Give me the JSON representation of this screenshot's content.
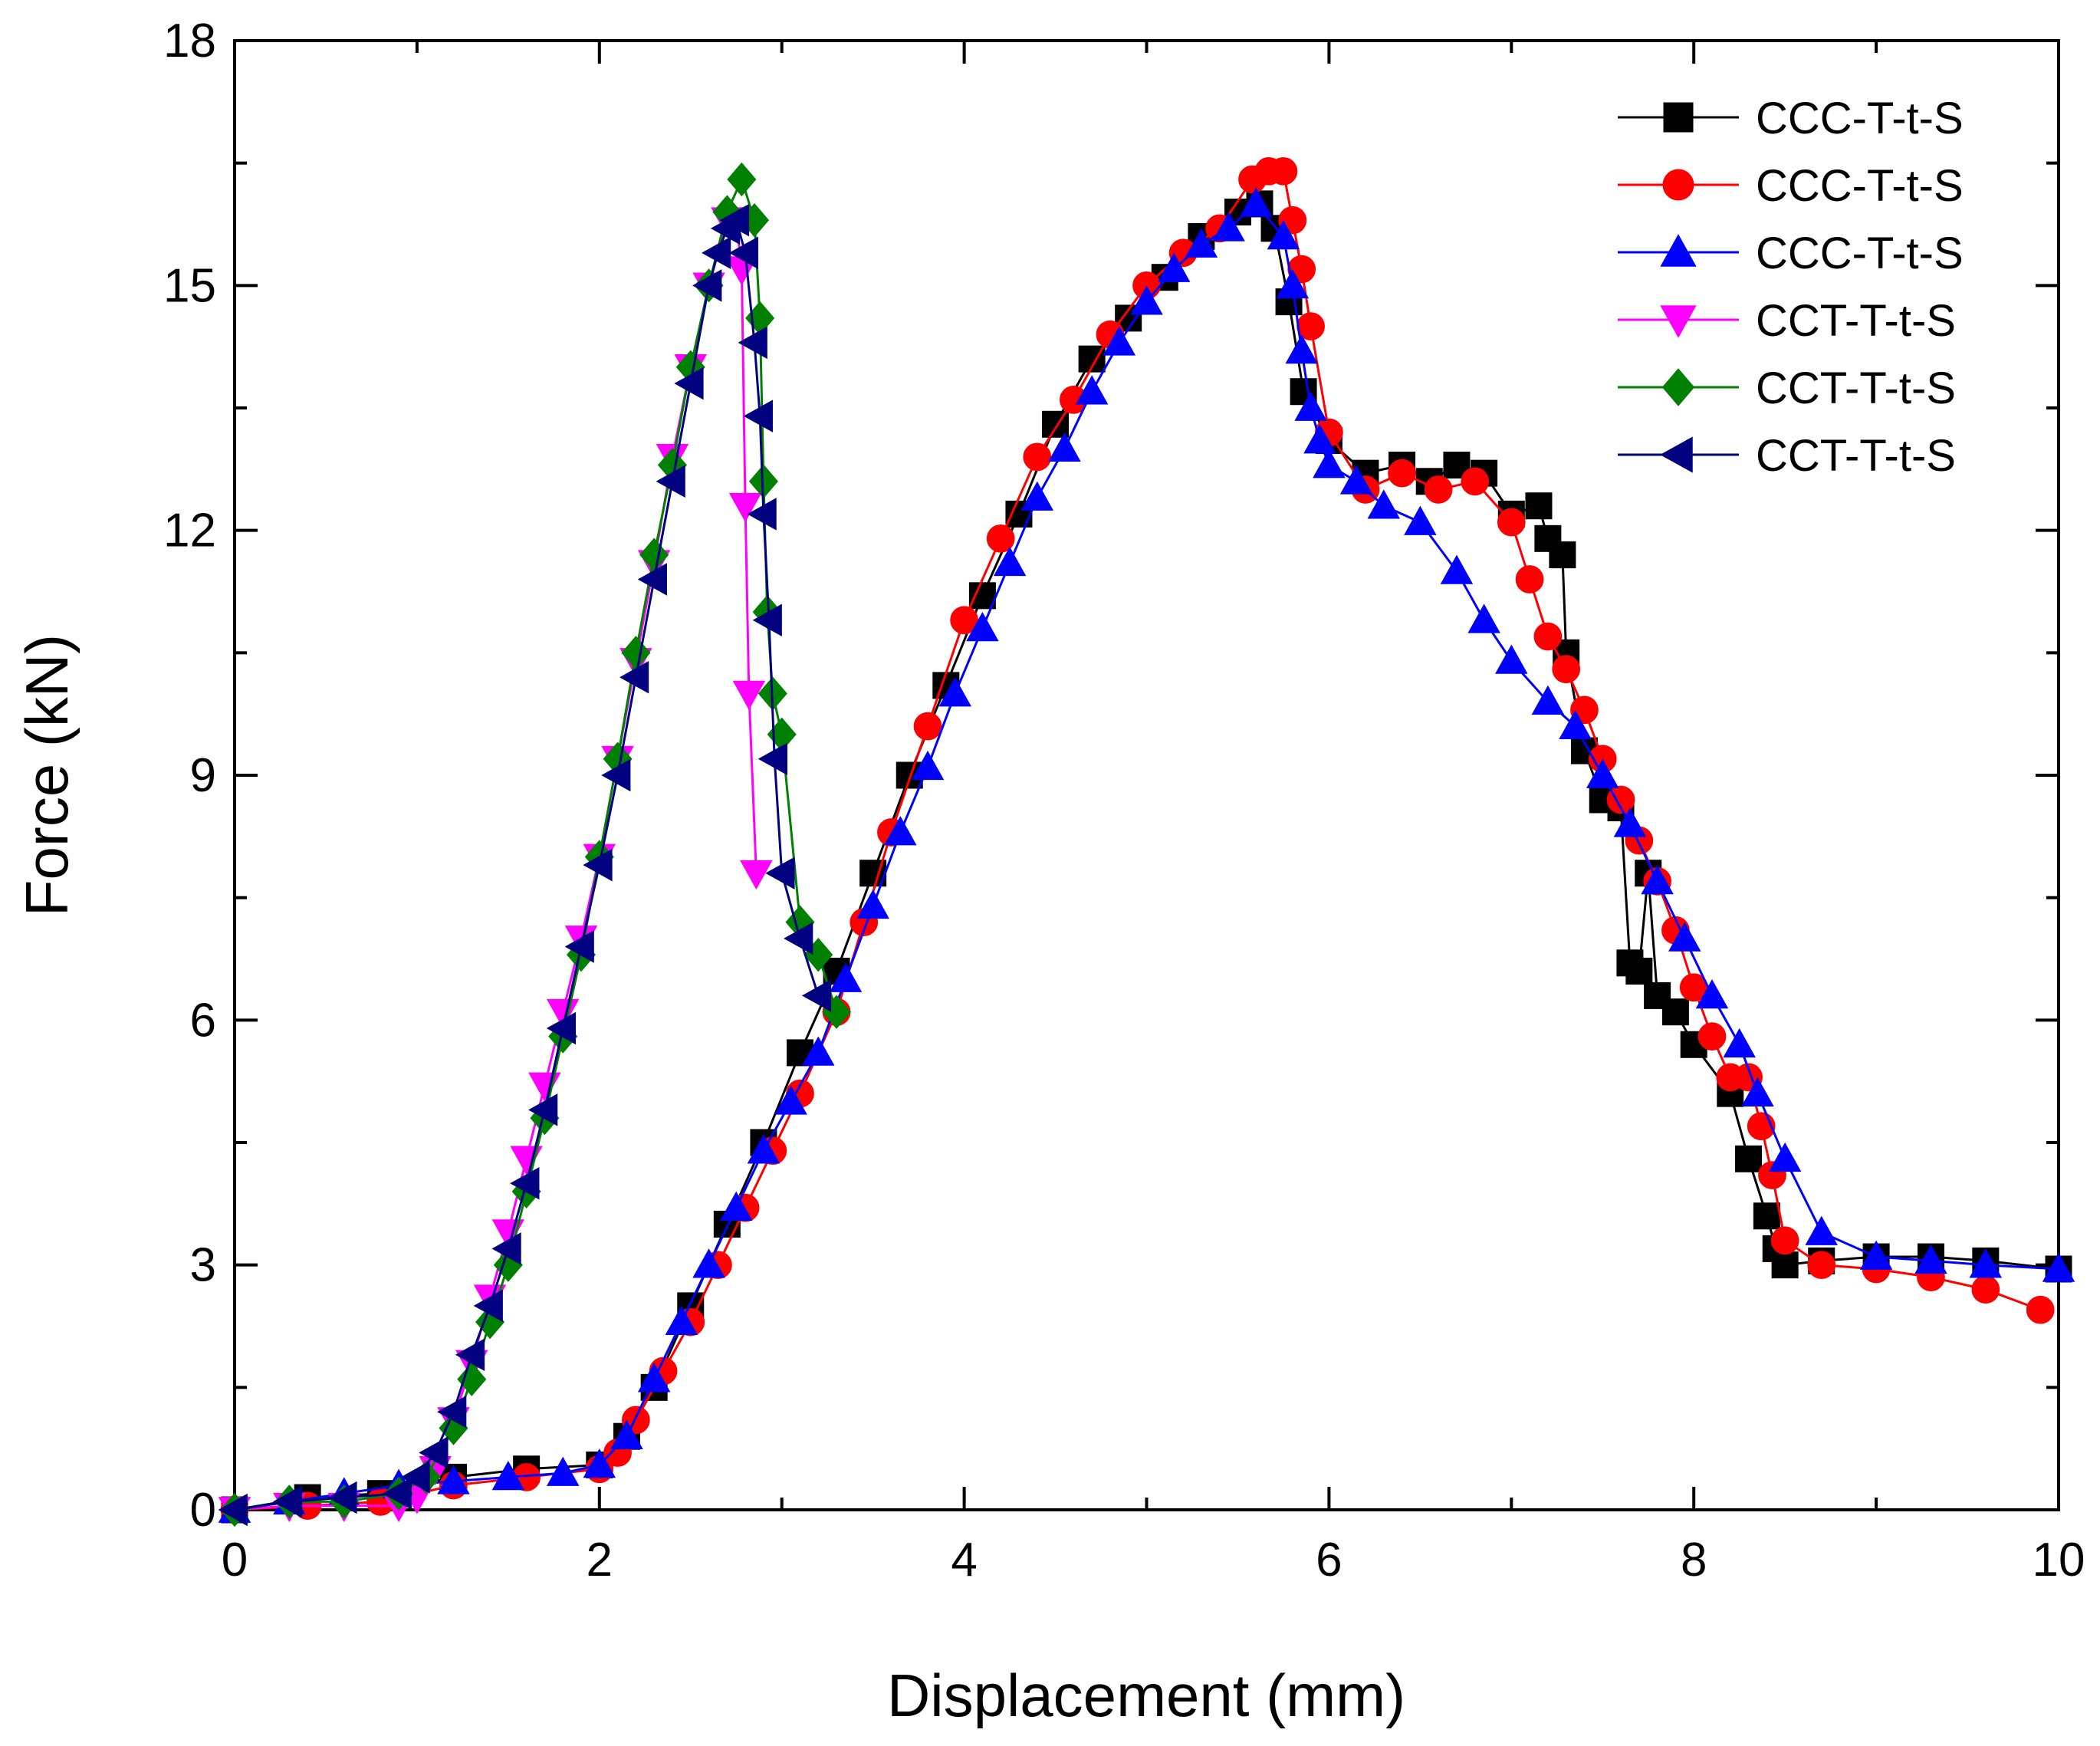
{
  "chart_data": {
    "type": "line",
    "title": "",
    "xlabel": "Displacement (mm)",
    "ylabel": "Force (kN)",
    "xlim": [
      0,
      10
    ],
    "ylim": [
      0,
      18
    ],
    "xticks": [
      "0",
      "2",
      "4",
      "6",
      "8",
      "10"
    ],
    "yticks": [
      "0",
      "3",
      "6",
      "9",
      "12",
      "15",
      "18"
    ],
    "xtick_values": [
      0,
      2,
      4,
      6,
      8,
      10
    ],
    "ytick_values": [
      0,
      3,
      6,
      9,
      12,
      15,
      18
    ],
    "grid": false,
    "legend_position": "top-right",
    "series": [
      {
        "name": "CCC-T-t-S",
        "color": "#000000",
        "marker": "square",
        "x": [
          0,
          0.4,
          0.8,
          1.2,
          1.6,
          2.0,
          2.15,
          2.3,
          2.5,
          2.7,
          2.9,
          3.1,
          3.3,
          3.5,
          3.7,
          3.9,
          4.1,
          4.3,
          4.5,
          4.7,
          4.9,
          5.1,
          5.3,
          5.5,
          5.62,
          5.7,
          5.78,
          5.86,
          6.0,
          6.2,
          6.4,
          6.55,
          6.7,
          6.85,
          7.0,
          7.15,
          7.2,
          7.28,
          7.3,
          7.4,
          7.5,
          7.6,
          7.65,
          7.7,
          7.75,
          7.8,
          7.9,
          8.0,
          8.2,
          8.3,
          8.4,
          8.45,
          8.5,
          8.7,
          9.0,
          9.3,
          9.6,
          10.0
        ],
        "y": [
          0,
          0.15,
          0.2,
          0.4,
          0.5,
          0.55,
          0.9,
          1.5,
          2.5,
          3.5,
          4.5,
          5.6,
          6.6,
          7.8,
          9.0,
          10.1,
          11.2,
          12.2,
          13.3,
          14.1,
          14.6,
          15.1,
          15.6,
          15.9,
          16.0,
          15.7,
          14.8,
          13.7,
          13.1,
          12.7,
          12.8,
          12.6,
          12.8,
          12.7,
          12.2,
          12.3,
          11.9,
          11.7,
          10.5,
          9.3,
          8.7,
          8.6,
          6.7,
          6.6,
          7.8,
          6.3,
          6.1,
          5.7,
          5.1,
          4.3,
          3.6,
          3.2,
          3.0,
          3.05,
          3.1,
          3.1,
          3.05,
          2.95
        ]
      },
      {
        "name": "CCC-T-t-S",
        "color": "#ff0000",
        "marker": "circle",
        "x": [
          0,
          0.4,
          0.8,
          1.2,
          1.6,
          2.0,
          2.1,
          2.2,
          2.35,
          2.5,
          2.65,
          2.8,
          2.95,
          3.1,
          3.3,
          3.45,
          3.6,
          3.8,
          4.0,
          4.2,
          4.4,
          4.6,
          4.8,
          5.0,
          5.2,
          5.4,
          5.58,
          5.67,
          5.75,
          5.8,
          5.85,
          5.9,
          6.0,
          6.2,
          6.4,
          6.6,
          6.8,
          7.0,
          7.1,
          7.2,
          7.3,
          7.4,
          7.5,
          7.6,
          7.7,
          7.8,
          7.9,
          8.0,
          8.1,
          8.2,
          8.3,
          8.37,
          8.43,
          8.5,
          8.7,
          9.0,
          9.3,
          9.6,
          9.9
        ],
        "y": [
          0,
          0.05,
          0.1,
          0.3,
          0.4,
          0.5,
          0.7,
          1.1,
          1.7,
          2.3,
          3.0,
          3.7,
          4.4,
          5.1,
          6.1,
          7.2,
          8.3,
          9.6,
          10.9,
          11.9,
          12.9,
          13.6,
          14.4,
          15.0,
          15.4,
          15.7,
          16.3,
          16.4,
          16.4,
          15.8,
          15.2,
          14.5,
          13.2,
          12.5,
          12.7,
          12.5,
          12.6,
          12.1,
          11.4,
          10.7,
          10.3,
          9.8,
          9.2,
          8.7,
          8.2,
          7.7,
          7.1,
          6.4,
          5.8,
          5.3,
          5.3,
          4.7,
          4.1,
          3.3,
          3.0,
          2.95,
          2.85,
          2.7,
          2.45
        ]
      },
      {
        "name": "CCC-T-t-S",
        "color": "#0000ff",
        "marker": "triangle-up",
        "x": [
          0,
          0.3,
          0.6,
          0.9,
          1.2,
          1.5,
          1.8,
          2.0,
          2.15,
          2.3,
          2.45,
          2.6,
          2.75,
          2.9,
          3.05,
          3.2,
          3.35,
          3.5,
          3.65,
          3.8,
          3.95,
          4.1,
          4.25,
          4.4,
          4.55,
          4.7,
          4.85,
          5.0,
          5.15,
          5.3,
          5.45,
          5.6,
          5.75,
          5.8,
          5.85,
          5.9,
          5.95,
          6.0,
          6.15,
          6.3,
          6.5,
          6.7,
          6.85,
          7.0,
          7.2,
          7.35,
          7.5,
          7.65,
          7.8,
          7.95,
          8.1,
          8.25,
          8.35,
          8.5,
          8.7,
          9.0,
          9.3,
          9.6,
          10.0
        ],
        "y": [
          0,
          0.1,
          0.2,
          0.3,
          0.35,
          0.4,
          0.45,
          0.55,
          0.9,
          1.6,
          2.3,
          3.0,
          3.7,
          4.4,
          5.0,
          5.6,
          6.5,
          7.4,
          8.3,
          9.1,
          10.0,
          10.8,
          11.6,
          12.4,
          13.0,
          13.7,
          14.3,
          14.8,
          15.2,
          15.5,
          15.7,
          16.0,
          15.6,
          15.0,
          14.2,
          13.5,
          13.1,
          12.8,
          12.6,
          12.3,
          12.1,
          11.5,
          10.9,
          10.4,
          9.9,
          9.6,
          9.0,
          8.4,
          7.7,
          7.0,
          6.3,
          5.7,
          5.1,
          4.3,
          3.4,
          3.1,
          3.05,
          3.0,
          2.95
        ]
      },
      {
        "name": "CCT-T-t-S",
        "color": "#ff00ff",
        "marker": "triangle-down",
        "x": [
          0,
          0.3,
          0.6,
          0.9,
          1.0,
          1.1,
          1.2,
          1.3,
          1.4,
          1.5,
          1.6,
          1.7,
          1.8,
          1.9,
          2.0,
          2.1,
          2.2,
          2.3,
          2.4,
          2.5,
          2.6,
          2.7,
          2.75,
          2.78,
          2.8,
          2.82,
          2.86
        ],
        "y": [
          0,
          0.05,
          0.05,
          0.05,
          0.15,
          0.5,
          1.1,
          1.8,
          2.6,
          3.4,
          4.3,
          5.2,
          6.1,
          7.0,
          8.0,
          9.2,
          10.4,
          11.6,
          12.9,
          14.0,
          15.0,
          15.8,
          15.8,
          15.2,
          12.3,
          10.0,
          7.8
        ]
      },
      {
        "name": "CCT-T-t-S",
        "color": "#008000",
        "marker": "diamond",
        "x": [
          0,
          0.3,
          0.6,
          0.9,
          1.05,
          1.2,
          1.3,
          1.4,
          1.5,
          1.6,
          1.7,
          1.8,
          1.9,
          2.0,
          2.1,
          2.2,
          2.3,
          2.4,
          2.5,
          2.6,
          2.7,
          2.78,
          2.85,
          2.88,
          2.9,
          2.92,
          2.95,
          3.0,
          3.1,
          3.2,
          3.3
        ],
        "y": [
          0,
          0.1,
          0.1,
          0.2,
          0.4,
          1.0,
          1.6,
          2.3,
          3.0,
          3.9,
          4.8,
          5.8,
          6.8,
          8.0,
          9.2,
          10.5,
          11.7,
          12.8,
          14.0,
          15.0,
          15.9,
          16.3,
          15.8,
          14.6,
          12.6,
          11.0,
          10.0,
          9.5,
          7.2,
          6.8,
          6.1
        ]
      },
      {
        "name": "CCT-T-t-S",
        "color": "#000080",
        "marker": "triangle-left",
        "x": [
          0,
          0.3,
          0.6,
          0.9,
          1.0,
          1.1,
          1.2,
          1.3,
          1.4,
          1.5,
          1.6,
          1.7,
          1.8,
          1.9,
          2.0,
          2.1,
          2.2,
          2.3,
          2.4,
          2.5,
          2.6,
          2.65,
          2.7,
          2.75,
          2.8,
          2.85,
          2.88,
          2.9,
          2.93,
          2.96,
          3.0,
          3.1,
          3.2
        ],
        "y": [
          0,
          0.1,
          0.15,
          0.2,
          0.4,
          0.7,
          1.2,
          1.9,
          2.5,
          3.2,
          4.0,
          4.9,
          5.9,
          6.9,
          7.9,
          9.0,
          10.2,
          11.4,
          12.6,
          13.8,
          15.0,
          15.4,
          15.7,
          15.8,
          15.4,
          14.3,
          13.4,
          12.2,
          10.9,
          9.2,
          7.8,
          7.0,
          6.3
        ]
      }
    ]
  }
}
